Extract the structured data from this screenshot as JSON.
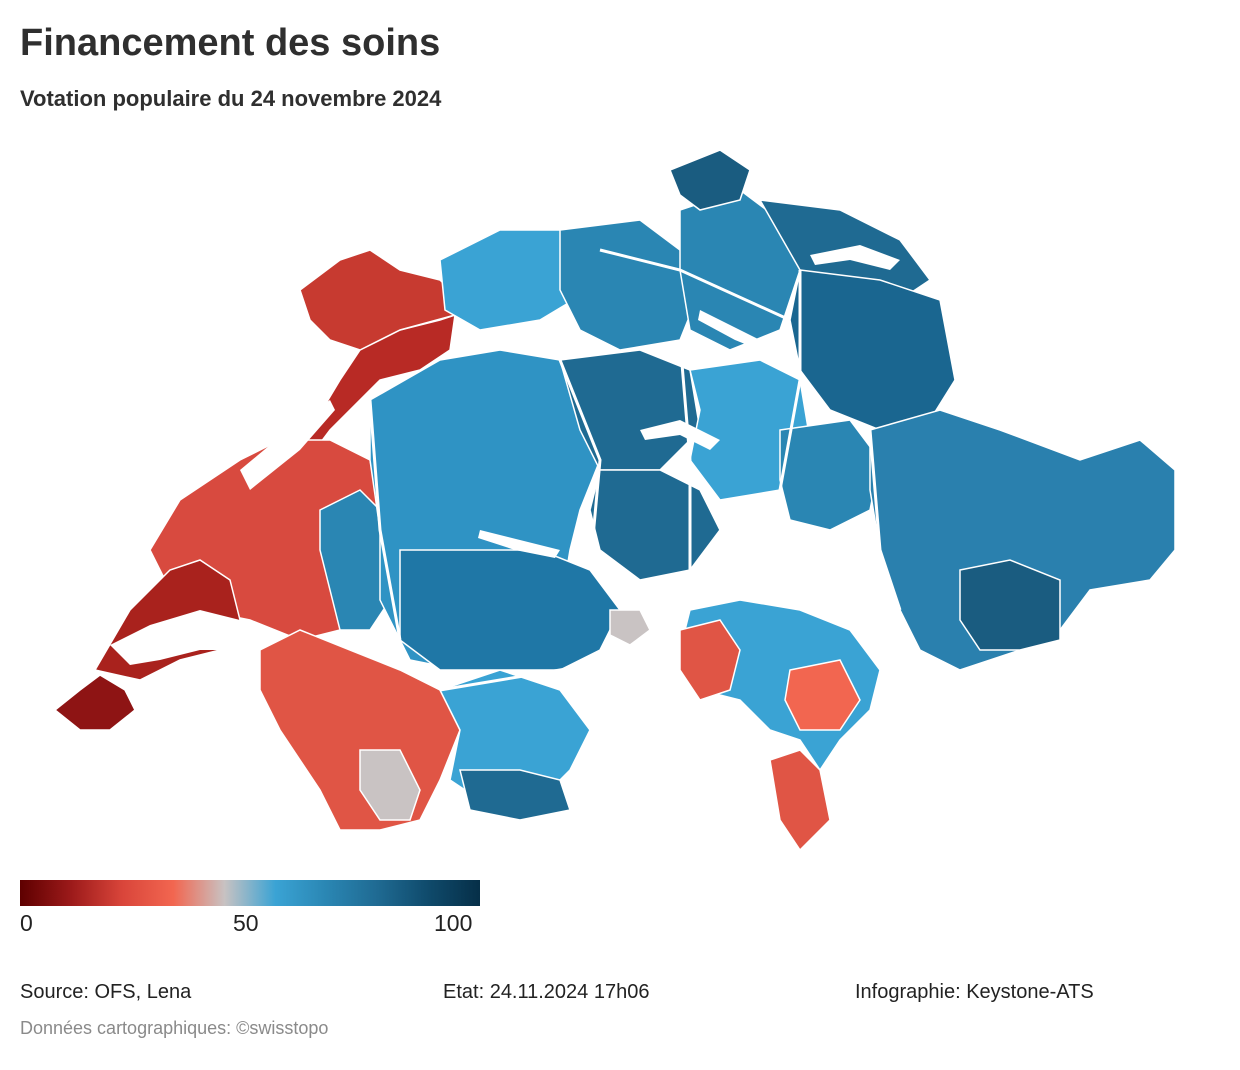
{
  "title": "Financement des soins",
  "subtitle": "Votation populaire du 24 novembre 2024",
  "legend": {
    "min_label": "0",
    "mid_label": "50",
    "max_label": "100",
    "colors": [
      "#5e0000",
      "#9c1a1a",
      "#d9453a",
      "#f26650",
      "#c8c2c2",
      "#3aa3d4",
      "#2a86b3",
      "#1f6a92",
      "#0f4a6b",
      "#062f48"
    ]
  },
  "footer": {
    "source": "Source: OFS, Lena",
    "state": "Etat: 24.11.2024 17h06",
    "credit": "Infographie: Keystone-ATS",
    "map_data": "Données cartographiques: ©swisstopo"
  },
  "map": {
    "no_data_color": "#c9c3c3",
    "border_color": "#ffffff"
  }
}
